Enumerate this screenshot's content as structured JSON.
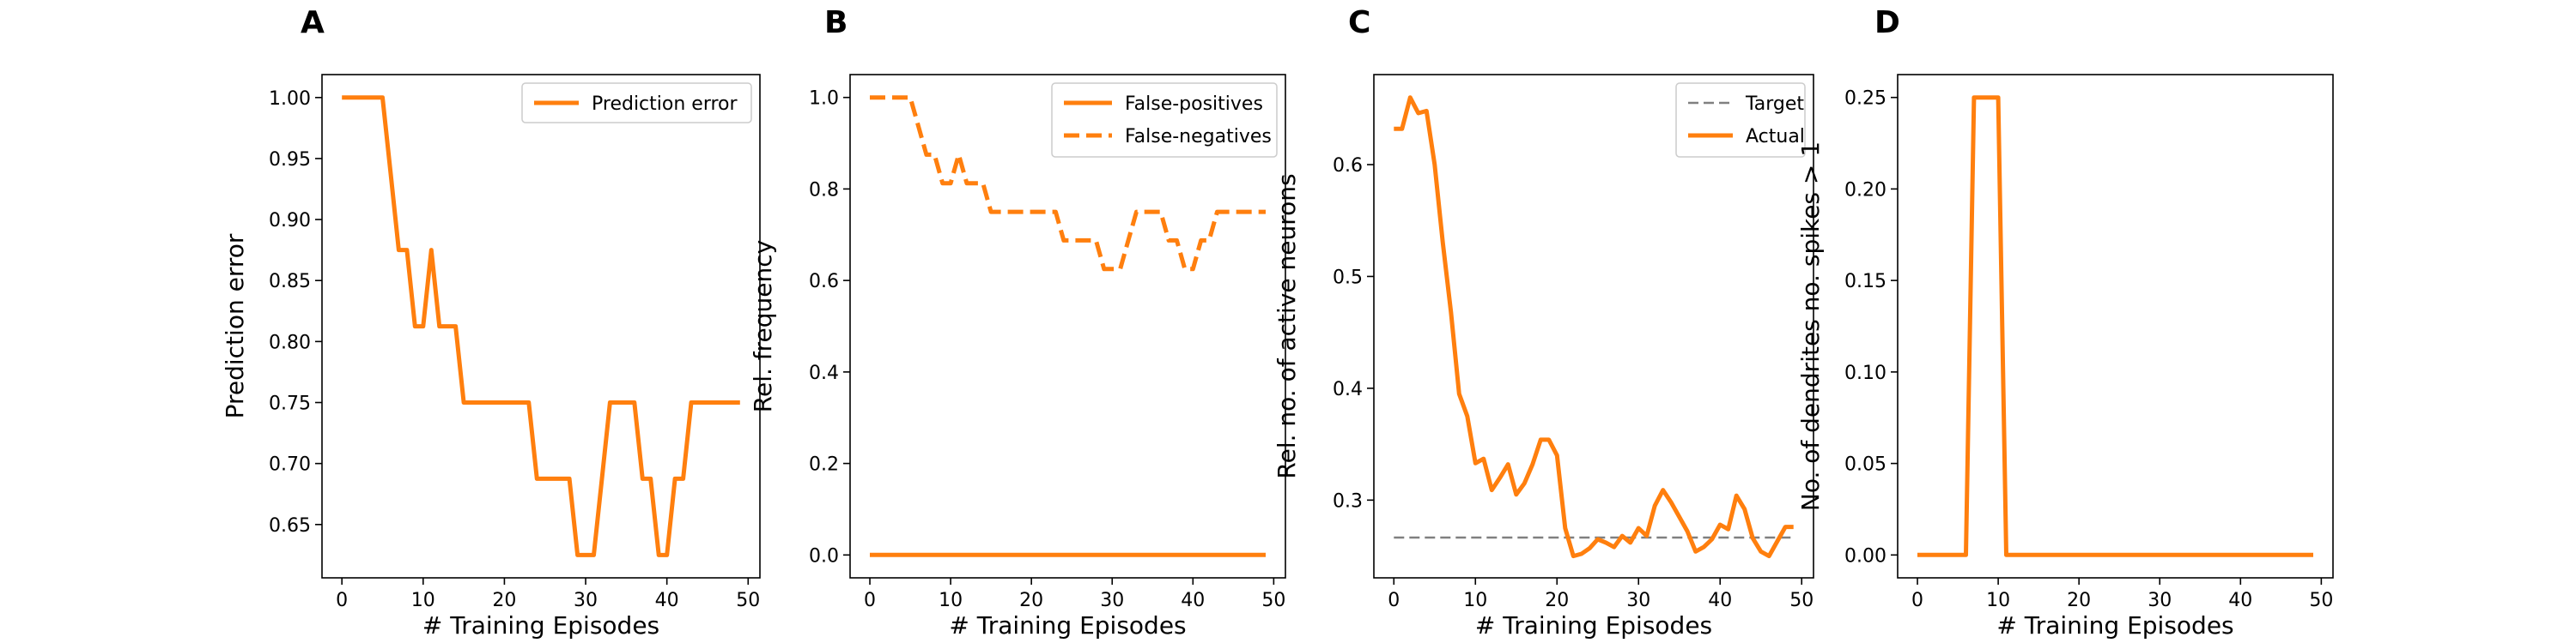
{
  "chart_data": [
    {
      "panel_label": "A",
      "type": "line",
      "xlabel": "# Training Episodes",
      "ylabel": "Prediction error",
      "xlim": [
        -2.45,
        51.45
      ],
      "ylim": [
        0.6063,
        1.0188
      ],
      "xticks": [
        0,
        10,
        20,
        30,
        40,
        50
      ],
      "yticks": [
        0.65,
        0.7,
        0.75,
        0.8,
        0.85,
        0.9,
        0.95,
        1.0
      ],
      "ytick_labels": [
        "0.65",
        "0.70",
        "0.75",
        "0.80",
        "0.85",
        "0.90",
        "0.95",
        "1.00"
      ],
      "legend_position": "upper right",
      "series": [
        {
          "name": "Prediction error",
          "color": "#ff7f0e",
          "style": "solid",
          "x": [
            0,
            1,
            2,
            3,
            4,
            5,
            6,
            7,
            8,
            9,
            10,
            11,
            12,
            13,
            14,
            15,
            16,
            17,
            18,
            19,
            20,
            21,
            22,
            23,
            24,
            25,
            26,
            27,
            28,
            29,
            30,
            31,
            32,
            33,
            34,
            35,
            36,
            37,
            38,
            39,
            40,
            41,
            42,
            43,
            44,
            45,
            46,
            47,
            48,
            49
          ],
          "values": [
            1.0,
            1.0,
            1.0,
            1.0,
            1.0,
            1.0,
            0.9375,
            0.875,
            0.875,
            0.8125,
            0.8125,
            0.875,
            0.8125,
            0.8125,
            0.8125,
            0.75,
            0.75,
            0.75,
            0.75,
            0.75,
            0.75,
            0.75,
            0.75,
            0.75,
            0.6875,
            0.6875,
            0.6875,
            0.6875,
            0.6875,
            0.625,
            0.625,
            0.625,
            0.6875,
            0.75,
            0.75,
            0.75,
            0.75,
            0.6875,
            0.6875,
            0.625,
            0.625,
            0.6875,
            0.6875,
            0.75,
            0.75,
            0.75,
            0.75,
            0.75,
            0.75,
            0.75
          ]
        }
      ]
    },
    {
      "panel_label": "B",
      "type": "line",
      "xlabel": "# Training Episodes",
      "ylabel": "Rel. frequency",
      "xlim": [
        -2.45,
        51.45
      ],
      "ylim": [
        -0.05,
        1.05
      ],
      "xticks": [
        0,
        10,
        20,
        30,
        40,
        50
      ],
      "yticks": [
        0.0,
        0.2,
        0.4,
        0.6,
        0.8,
        1.0
      ],
      "ytick_labels": [
        "0.0",
        "0.2",
        "0.4",
        "0.6",
        "0.8",
        "1.0"
      ],
      "legend_position": "upper right",
      "series": [
        {
          "name": "False-positives",
          "color": "#ff7f0e",
          "style": "solid",
          "x": [
            0,
            1,
            2,
            3,
            4,
            5,
            6,
            7,
            8,
            9,
            10,
            11,
            12,
            13,
            14,
            15,
            16,
            17,
            18,
            19,
            20,
            21,
            22,
            23,
            24,
            25,
            26,
            27,
            28,
            29,
            30,
            31,
            32,
            33,
            34,
            35,
            36,
            37,
            38,
            39,
            40,
            41,
            42,
            43,
            44,
            45,
            46,
            47,
            48,
            49
          ],
          "values": [
            0,
            0,
            0,
            0,
            0,
            0,
            0,
            0,
            0,
            0,
            0,
            0,
            0,
            0,
            0,
            0,
            0,
            0,
            0,
            0,
            0,
            0,
            0,
            0,
            0,
            0,
            0,
            0,
            0,
            0,
            0,
            0,
            0,
            0,
            0,
            0,
            0,
            0,
            0,
            0,
            0,
            0,
            0,
            0,
            0,
            0,
            0,
            0,
            0,
            0
          ]
        },
        {
          "name": "False-negatives",
          "color": "#ff7f0e",
          "style": "dashed",
          "x": [
            0,
            1,
            2,
            3,
            4,
            5,
            6,
            7,
            8,
            9,
            10,
            11,
            12,
            13,
            14,
            15,
            16,
            17,
            18,
            19,
            20,
            21,
            22,
            23,
            24,
            25,
            26,
            27,
            28,
            29,
            30,
            31,
            32,
            33,
            34,
            35,
            36,
            37,
            38,
            39,
            40,
            41,
            42,
            43,
            44,
            45,
            46,
            47,
            48,
            49
          ],
          "values": [
            1.0,
            1.0,
            1.0,
            1.0,
            1.0,
            1.0,
            0.9375,
            0.875,
            0.875,
            0.8125,
            0.8125,
            0.875,
            0.8125,
            0.8125,
            0.8125,
            0.75,
            0.75,
            0.75,
            0.75,
            0.75,
            0.75,
            0.75,
            0.75,
            0.75,
            0.6875,
            0.6875,
            0.6875,
            0.6875,
            0.6875,
            0.625,
            0.625,
            0.625,
            0.6875,
            0.75,
            0.75,
            0.75,
            0.75,
            0.6875,
            0.6875,
            0.625,
            0.625,
            0.6875,
            0.6875,
            0.75,
            0.75,
            0.75,
            0.75,
            0.75,
            0.75,
            0.75
          ]
        }
      ]
    },
    {
      "panel_label": "C",
      "type": "line",
      "xlabel": "# Training Episodes",
      "ylabel": "Rel. no. of active neurons",
      "xlim": [
        -2.45,
        51.45
      ],
      "ylim": [
        0.2305,
        0.6805
      ],
      "xticks": [
        0,
        10,
        20,
        30,
        40,
        50
      ],
      "yticks": [
        0.3,
        0.4,
        0.5,
        0.6
      ],
      "ytick_labels": [
        "0.3",
        "0.4",
        "0.5",
        "0.6"
      ],
      "legend_position": "upper right",
      "series": [
        {
          "name": "Target",
          "color": "#808080",
          "style": "dashed",
          "x": [
            0,
            49
          ],
          "values": [
            0.2665,
            0.2665
          ]
        },
        {
          "name": "Actual",
          "color": "#ff7f0e",
          "style": "solid",
          "x": [
            0,
            1,
            2,
            3,
            4,
            5,
            6,
            7,
            8,
            9,
            10,
            11,
            12,
            13,
            14,
            15,
            16,
            17,
            18,
            19,
            20,
            21,
            22,
            23,
            24,
            25,
            26,
            27,
            28,
            29,
            30,
            31,
            32,
            33,
            34,
            35,
            36,
            37,
            38,
            39,
            40,
            41,
            42,
            43,
            44,
            45,
            46,
            47,
            48,
            49
          ],
          "values": [
            0.632,
            0.632,
            0.66,
            0.646,
            0.648,
            0.6,
            0.53,
            0.468,
            0.395,
            0.375,
            0.333,
            0.337,
            0.309,
            0.32,
            0.332,
            0.305,
            0.315,
            0.332,
            0.354,
            0.354,
            0.34,
            0.275,
            0.25,
            0.252,
            0.257,
            0.265,
            0.262,
            0.258,
            0.268,
            0.262,
            0.275,
            0.268,
            0.295,
            0.309,
            0.298,
            0.285,
            0.272,
            0.254,
            0.258,
            0.265,
            0.278,
            0.274,
            0.304,
            0.292,
            0.266,
            0.254,
            0.25,
            0.263,
            0.276,
            0.276
          ]
        }
      ]
    },
    {
      "panel_label": "D",
      "type": "line",
      "xlabel": "# Training Episodes",
      "ylabel": "No. of dendrites no. spikes > 1",
      "xlim": [
        -2.45,
        51.45
      ],
      "ylim": [
        -0.0125,
        0.2625
      ],
      "xticks": [
        0,
        10,
        20,
        30,
        40,
        50
      ],
      "yticks": [
        0.0,
        0.05,
        0.1,
        0.15,
        0.2,
        0.25
      ],
      "ytick_labels": [
        "0.00",
        "0.05",
        "0.10",
        "0.15",
        "0.20",
        "0.25"
      ],
      "legend_position": "none",
      "series": [
        {
          "name": "",
          "color": "#ff7f0e",
          "style": "solid",
          "x": [
            0,
            1,
            2,
            3,
            4,
            5,
            6,
            7,
            8,
            9,
            10,
            11,
            12,
            13,
            14,
            15,
            16,
            17,
            18,
            19,
            20,
            21,
            22,
            23,
            24,
            25,
            26,
            27,
            28,
            29,
            30,
            31,
            32,
            33,
            34,
            35,
            36,
            37,
            38,
            39,
            40,
            41,
            42,
            43,
            44,
            45,
            46,
            47,
            48,
            49
          ],
          "values": [
            0,
            0,
            0,
            0,
            0,
            0,
            0,
            0.25,
            0.25,
            0.25,
            0.25,
            0,
            0,
            0,
            0,
            0,
            0,
            0,
            0,
            0,
            0,
            0,
            0,
            0,
            0,
            0,
            0,
            0,
            0,
            0,
            0,
            0,
            0,
            0,
            0,
            0,
            0,
            0,
            0,
            0,
            0,
            0,
            0,
            0,
            0,
            0,
            0,
            0,
            0,
            0
          ]
        }
      ]
    }
  ]
}
